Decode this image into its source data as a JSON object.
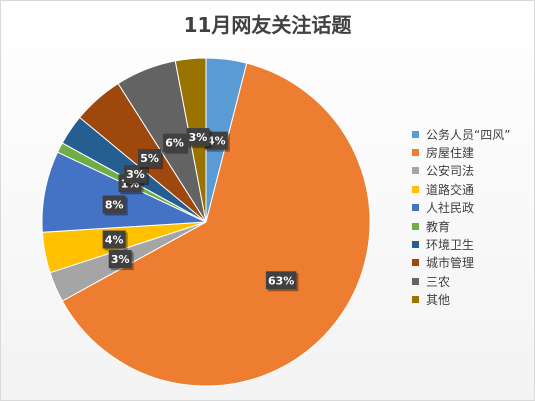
{
  "title": "11月网友关注话题",
  "chart_data": {
    "type": "pie",
    "title": "11月网友关注话题",
    "legend_position": "right",
    "categories": [
      "公务人员“四风”",
      "房屋住建",
      "公安司法",
      "道路交通",
      "人社民政",
      "教育",
      "环境卫生",
      "城市管理",
      "三农",
      "其他"
    ],
    "values": [
      4,
      63,
      3,
      4,
      8,
      1,
      3,
      5,
      6,
      3
    ],
    "labels": [
      "4%",
      "63%",
      "3%",
      "4%",
      "8%",
      "1%",
      "3%",
      "5%",
      "6%",
      "3%"
    ],
    "colors": [
      "#5B9BD5",
      "#ED7D31",
      "#A5A5A5",
      "#FFC000",
      "#4472C4",
      "#70AD47",
      "#255E91",
      "#9E480E",
      "#636363",
      "#997300"
    ]
  }
}
